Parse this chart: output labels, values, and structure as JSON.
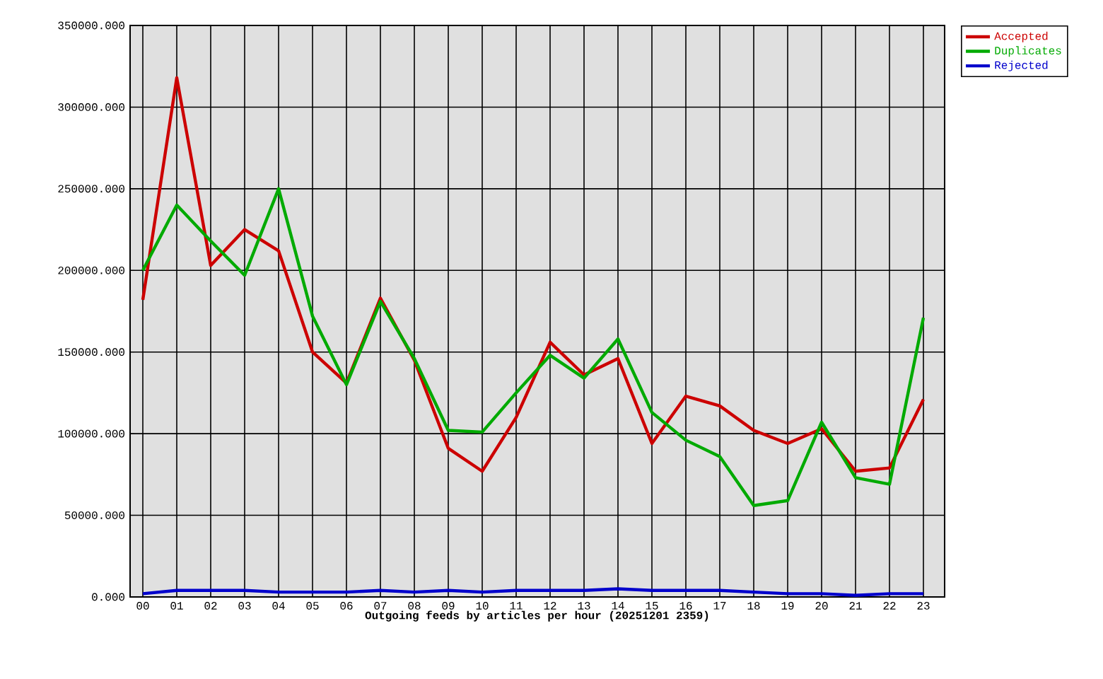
{
  "chart_data": {
    "type": "line",
    "xlabel": "Outgoing feeds by articles per hour (20251201 2359)",
    "categories": [
      "00",
      "01",
      "02",
      "03",
      "04",
      "05",
      "06",
      "07",
      "08",
      "09",
      "10",
      "11",
      "12",
      "13",
      "14",
      "15",
      "16",
      "17",
      "18",
      "19",
      "20",
      "21",
      "22",
      "23"
    ],
    "series": [
      {
        "name": "Accepted",
        "color": "#cc0000",
        "values": [
          182000,
          318000,
          203000,
          225000,
          212000,
          150000,
          131000,
          183000,
          145000,
          91000,
          77000,
          110000,
          156000,
          136000,
          146000,
          94000,
          123000,
          117000,
          102000,
          94000,
          103000,
          77000,
          79000,
          121000
        ]
      },
      {
        "name": "Duplicates",
        "color": "#00aa00",
        "values": [
          200000,
          240000,
          218000,
          197000,
          250000,
          172000,
          130000,
          181000,
          146000,
          102000,
          101000,
          125000,
          148000,
          134000,
          158000,
          113000,
          96000,
          86000,
          56000,
          59000,
          107000,
          73000,
          69000,
          171000
        ]
      },
      {
        "name": "Rejected",
        "color": "#0000cc",
        "values": [
          2000,
          4000,
          4000,
          4000,
          3000,
          3000,
          3000,
          4000,
          3000,
          4000,
          3000,
          4000,
          4000,
          4000,
          5000,
          4000,
          4000,
          4000,
          3000,
          2000,
          2000,
          1000,
          2000,
          2000
        ]
      }
    ],
    "ylim": [
      0,
      350000
    ],
    "yticks": [
      {
        "value": 0,
        "label": "0.000"
      },
      {
        "value": 50000,
        "label": "50000.000"
      },
      {
        "value": 100000,
        "label": "100000.000"
      },
      {
        "value": 150000,
        "label": "150000.000"
      },
      {
        "value": 200000,
        "label": "200000.000"
      },
      {
        "value": 250000,
        "label": "250000.000"
      },
      {
        "value": 300000,
        "label": "300000.000"
      },
      {
        "value": 350000,
        "label": "350000.000"
      }
    ],
    "grid": true,
    "legend": "top right",
    "line_style": "solid"
  }
}
